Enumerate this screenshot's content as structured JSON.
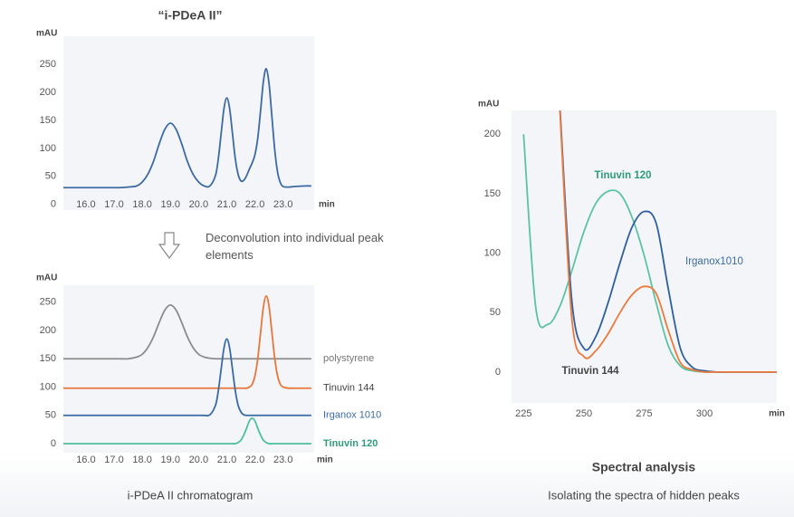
{
  "chart_data": [
    {
      "type": "line",
      "title": "“i-PDeA II”",
      "ylabel": "mAU",
      "xlabel": "min",
      "x": [
        15.2,
        15.6,
        16.0,
        16.4,
        16.8,
        17.2,
        17.5,
        17.8,
        18.0,
        18.2,
        18.4,
        18.6,
        18.8,
        19.0,
        19.2,
        19.4,
        19.6,
        19.8,
        20.0,
        20.2,
        20.4,
        20.6,
        20.7,
        20.8,
        20.9,
        21.0,
        21.1,
        21.2,
        21.3,
        21.4,
        21.5,
        21.6,
        21.7,
        21.8,
        21.9,
        22.0,
        22.1,
        22.2,
        22.3,
        22.4,
        22.5,
        22.6,
        22.7,
        22.8,
        22.9,
        23.0,
        23.2,
        23.4,
        23.8,
        24.0
      ],
      "series": [
        {
          "color": "#3d6aa3",
          "values": [
            30,
            30,
            30,
            30,
            30,
            30,
            31,
            33,
            40,
            54,
            77,
            108,
            134,
            145,
            134,
            108,
            77,
            54,
            40,
            33,
            33,
            52,
            82,
            127,
            171,
            190,
            171,
            127,
            82,
            54,
            42,
            43,
            51,
            63,
            74,
            89,
            119,
            168,
            220,
            242,
            215,
            157,
            98,
            58,
            39,
            32,
            31,
            32,
            33,
            33
          ]
        }
      ],
      "xlim": [
        15.2,
        24.1
      ],
      "ylim": [
        -10,
        300
      ],
      "xticks": [
        {
          "value": 16,
          "label": "16.0"
        },
        {
          "value": 17,
          "label": "17.0"
        },
        {
          "value": 18,
          "label": "18.0"
        },
        {
          "value": 19,
          "label": "19.0"
        },
        {
          "value": 20,
          "label": "20.0"
        },
        {
          "value": 21,
          "label": "21.0"
        },
        {
          "value": 22,
          "label": "22.0"
        },
        {
          "value": 23,
          "label": "23.0"
        }
      ],
      "yticks": [
        0,
        50,
        100,
        150,
        200,
        250
      ],
      "grid": false
    },
    {
      "type": "line",
      "title": "i-PDeA II chromatogram",
      "ylabel": "mAU",
      "xlabel": "min",
      "x": [
        15.2,
        15.6,
        16.0,
        16.4,
        16.8,
        17.2,
        17.5,
        17.8,
        18.0,
        18.2,
        18.4,
        18.6,
        18.8,
        19.0,
        19.2,
        19.4,
        19.6,
        19.8,
        20.0,
        20.2,
        20.4,
        20.6,
        20.7,
        20.8,
        20.9,
        21.0,
        21.1,
        21.2,
        21.3,
        21.4,
        21.5,
        21.6,
        21.7,
        21.8,
        21.9,
        22.0,
        22.1,
        22.2,
        22.3,
        22.4,
        22.5,
        22.6,
        22.7,
        22.8,
        22.9,
        23.0,
        23.2,
        23.4,
        23.8,
        24.0
      ],
      "series": [
        {
          "name": "polystyrene",
          "color": "#8c8c8c",
          "label_color": "#777777",
          "values": [
            150,
            150,
            150,
            150,
            150,
            150,
            150,
            153,
            158,
            170,
            189,
            214,
            236,
            245,
            236,
            214,
            189,
            170,
            158,
            153,
            151,
            150,
            150,
            150,
            150,
            150,
            150,
            150,
            150,
            150,
            150,
            150,
            150,
            150,
            150,
            150,
            150,
            150,
            150,
            150,
            150,
            150,
            150,
            150,
            150,
            150,
            150,
            150,
            150,
            150
          ]
        },
        {
          "name": "Tinuvin 144",
          "color": "#e8773a",
          "label_color": "#444444",
          "values": [
            98,
            98,
            98,
            98,
            98,
            98,
            98,
            98,
            98,
            98,
            98,
            98,
            98,
            98,
            98,
            98,
            98,
            98,
            98,
            98,
            98,
            98,
            98,
            98,
            98,
            98,
            98,
            98,
            98,
            98,
            98,
            98,
            98,
            100,
            105,
            120,
            151,
            197,
            242,
            261,
            242,
            197,
            151,
            120,
            105,
            100,
            98,
            98,
            98,
            98
          ]
        },
        {
          "name": "Irganox 1010",
          "color": "#3a6aa8",
          "label_color": "#3a6aa8",
          "values": [
            50,
            50,
            50,
            50,
            50,
            50,
            50,
            50,
            50,
            50,
            50,
            50,
            50,
            50,
            50,
            50,
            50,
            50,
            50,
            50,
            51,
            68,
            94,
            132,
            169,
            185,
            169,
            132,
            94,
            68,
            56,
            51,
            50,
            50,
            50,
            50,
            50,
            50,
            50,
            50,
            50,
            50,
            50,
            50,
            50,
            50,
            50,
            50,
            50,
            50
          ]
        },
        {
          "name": "Tinuvin 120",
          "color": "#4dbf9a",
          "label_color": "#2f9c77",
          "values": [
            0,
            0,
            0,
            0,
            0,
            0,
            0,
            0,
            0,
            0,
            0,
            0,
            0,
            0,
            0,
            0,
            0,
            0,
            0,
            0,
            0,
            0,
            0,
            0,
            0,
            0,
            0,
            0,
            0,
            2,
            6,
            15,
            27,
            40,
            45,
            40,
            27,
            15,
            6,
            2,
            0,
            0,
            0,
            0,
            0,
            0,
            0,
            0,
            0,
            0
          ]
        }
      ],
      "xlim": [
        15.2,
        24.1
      ],
      "ylim": [
        -16,
        280
      ],
      "xticks": [
        {
          "value": 16,
          "label": "16.0"
        },
        {
          "value": 17,
          "label": "17.0"
        },
        {
          "value": 18,
          "label": "18.0"
        },
        {
          "value": 19,
          "label": "19.0"
        },
        {
          "value": 20,
          "label": "20.0"
        },
        {
          "value": 21,
          "label": "21.0"
        },
        {
          "value": 22,
          "label": "22.0"
        },
        {
          "value": 23,
          "label": "23.0"
        }
      ],
      "yticks": [
        0,
        50,
        100,
        150,
        200,
        250
      ],
      "grid": false
    },
    {
      "type": "line",
      "title": "Spectral analysis",
      "subtitle": "Isolating the spectra of hidden peaks",
      "ylabel": "mAU",
      "xlabel": "min",
      "x": [
        225,
        230,
        235,
        240,
        245,
        250,
        255,
        260,
        265,
        270,
        275,
        280,
        285,
        290,
        295,
        300,
        305,
        310,
        315,
        320,
        325,
        330
      ],
      "series": [
        {
          "name": "Tinuvin 120",
          "color": "#5cc3a0",
          "label_color": "#2f9c77",
          "values": [
            200,
            55,
            40,
            55,
            85,
            118,
            142,
            152,
            150,
            130,
            98,
            58,
            22,
            5,
            1,
            0,
            0,
            0,
            0,
            0,
            0,
            0
          ]
        },
        {
          "name": "Irganox1010",
          "color": "#2f5f9e",
          "label_color": "#3a6aa8",
          "values": [
            null,
            null,
            null,
            225,
            60,
            20,
            30,
            58,
            92,
            122,
            135,
            125,
            70,
            20,
            4,
            1,
            0,
            0,
            0,
            0,
            0,
            0
          ]
        },
        {
          "name": "Tinuvin 144",
          "color": "#ec7a3d",
          "label_color": "#444444",
          "values": [
            null,
            null,
            null,
            222,
            45,
            13,
            18,
            32,
            50,
            65,
            72,
            66,
            35,
            8,
            2,
            0,
            0,
            0,
            0,
            0,
            0,
            0
          ]
        }
      ],
      "xlim": [
        220,
        330
      ],
      "ylim": [
        -26,
        220
      ],
      "xticks": [
        225,
        250,
        275,
        300
      ],
      "yticks": [
        0,
        50,
        100,
        150,
        200
      ],
      "grid": false
    }
  ],
  "note": "Deconvolution into individual peak elements"
}
